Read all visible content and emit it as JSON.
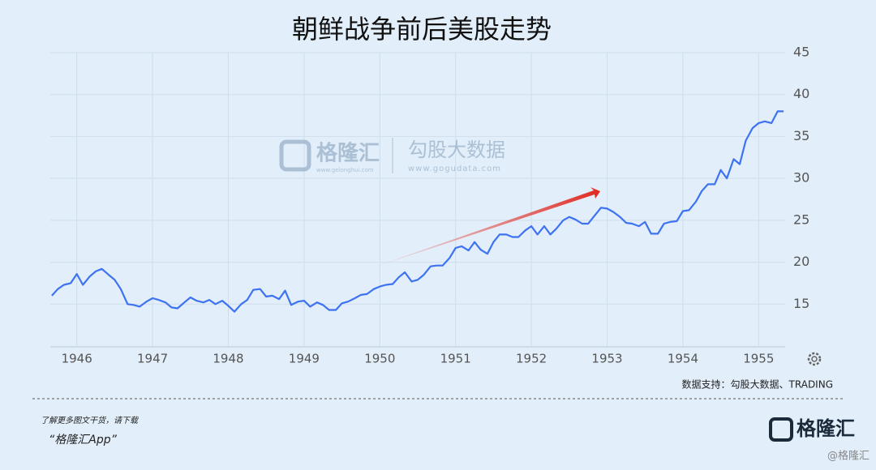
{
  "chart_data": {
    "type": "line",
    "title": "朝鲜战争前后美股走势",
    "x": [
      1945.67,
      1945.75,
      1945.83,
      1945.92,
      1946.0,
      1946.08,
      1946.17,
      1946.25,
      1946.33,
      1946.42,
      1946.5,
      1946.58,
      1946.67,
      1946.75,
      1946.83,
      1946.92,
      1947.0,
      1947.08,
      1947.17,
      1947.25,
      1947.33,
      1947.42,
      1947.5,
      1947.58,
      1947.67,
      1947.75,
      1947.83,
      1947.92,
      1948.0,
      1948.08,
      1948.17,
      1948.25,
      1948.33,
      1948.42,
      1948.5,
      1948.58,
      1948.67,
      1948.75,
      1948.83,
      1948.92,
      1949.0,
      1949.08,
      1949.17,
      1949.25,
      1949.33,
      1949.42,
      1949.5,
      1949.58,
      1949.67,
      1949.75,
      1949.83,
      1949.92,
      1950.0,
      1950.08,
      1950.17,
      1950.25,
      1950.33,
      1950.42,
      1950.5,
      1950.58,
      1950.67,
      1950.75,
      1950.83,
      1950.92,
      1951.0,
      1951.08,
      1951.17,
      1951.25,
      1951.33,
      1951.42,
      1951.5,
      1951.58,
      1951.67,
      1951.75,
      1951.83,
      1951.92,
      1952.0,
      1952.08,
      1952.17,
      1952.25,
      1952.33,
      1952.42,
      1952.5,
      1952.58,
      1952.67,
      1952.75,
      1952.83,
      1952.92,
      1953.0,
      1953.08,
      1953.17,
      1953.25,
      1953.33,
      1953.42,
      1953.5,
      1953.58,
      1953.67,
      1953.75,
      1953.83,
      1953.92,
      1954.0,
      1954.08,
      1954.17,
      1954.25,
      1954.33,
      1954.42,
      1954.5,
      1954.58,
      1954.67,
      1954.75,
      1954.83,
      1954.92,
      1955.0,
      1955.08,
      1955.17,
      1955.25,
      1955.33
    ],
    "series": [
      {
        "color": "#3d72f2",
        "values": [
          16.0,
          16.8,
          17.3,
          17.5,
          18.6,
          17.3,
          18.3,
          18.9,
          19.2,
          18.5,
          17.9,
          16.8,
          15.0,
          14.9,
          14.7,
          15.3,
          15.7,
          15.5,
          15.2,
          14.6,
          14.5,
          15.2,
          15.8,
          15.4,
          15.2,
          15.5,
          15.0,
          15.4,
          14.8,
          14.1,
          15.0,
          15.5,
          16.7,
          16.8,
          15.9,
          16.0,
          15.6,
          16.6,
          14.9,
          15.3,
          15.4,
          14.7,
          15.2,
          14.9,
          14.3,
          14.3,
          15.1,
          15.3,
          15.7,
          16.1,
          16.2,
          16.8,
          17.1,
          17.3,
          17.4,
          18.2,
          18.8,
          17.7,
          17.9,
          18.5,
          19.5,
          19.6,
          19.6,
          20.5,
          21.7,
          21.9,
          21.4,
          22.4,
          21.5,
          21.0,
          22.4,
          23.3,
          23.3,
          23.0,
          23.0,
          23.8,
          24.3,
          23.3,
          24.3,
          23.3,
          24.0,
          25.0,
          25.4,
          25.1,
          24.6,
          24.6,
          25.5,
          26.5,
          26.4,
          26.0,
          25.4,
          24.7,
          24.6,
          24.3,
          24.8,
          23.4,
          23.4,
          24.6,
          24.8,
          24.9,
          26.1,
          26.2,
          27.2,
          28.5,
          29.3,
          29.3,
          31.0,
          30.0,
          32.3,
          31.7,
          34.5,
          36.0,
          36.6,
          36.8,
          36.6,
          38.0,
          38.0
        ]
      }
    ],
    "xlim": [
      1945.65,
      1955.35
    ],
    "xticks": [
      1946,
      1947,
      1948,
      1949,
      1950,
      1951,
      1952,
      1953,
      1954,
      1955
    ],
    "ylim": [
      10,
      45
    ],
    "yticks": [
      15,
      20,
      25,
      30,
      35,
      40,
      45
    ],
    "grid": true
  },
  "watermark": {
    "brand": "格隆汇",
    "brand_url": "www.gelonghui.com",
    "partner": "勾股大数据",
    "partner_url": "www.gogudata.com"
  },
  "source": "数据支持：勾股大数据、TRADING",
  "footer": {
    "line1": "了解更多图文干货，请下载",
    "line2": "“格隆汇App”",
    "logo": "格隆汇",
    "handle": "@格隆汇"
  }
}
